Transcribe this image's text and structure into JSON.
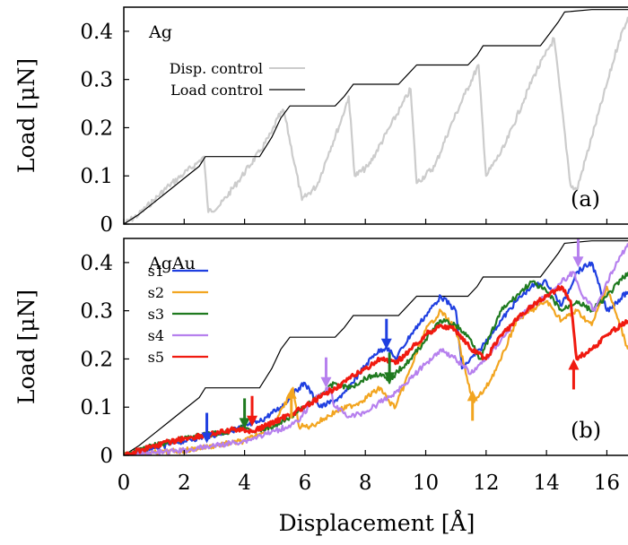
{
  "chart_data": [
    {
      "type": "line",
      "panel_tag": "Ag",
      "panel_letter": "(a)",
      "ylabel": "Load [μN]",
      "xlim": [
        0,
        16.7
      ],
      "ylim": [
        0,
        0.45
      ],
      "yticks": [
        0,
        0.1,
        0.2,
        0.3,
        0.4
      ],
      "ytick_labels": [
        "0",
        "0.1",
        "0.2",
        "0.3",
        "0.4"
      ],
      "legend_position": "top-left",
      "series": [
        {
          "name": "Disp. control",
          "color": "#cccccc",
          "noisy": true,
          "x": [
            0,
            0.5,
            1.0,
            1.5,
            2.0,
            2.4,
            2.65,
            2.8,
            3.2,
            3.8,
            4.5,
            4.9,
            5.1,
            5.3,
            5.9,
            6.4,
            6.8,
            7.2,
            7.45,
            7.65,
            8.1,
            8.8,
            9.2,
            9.5,
            9.7,
            10.3,
            10.8,
            11.3,
            11.75,
            12.0,
            12.6,
            13.2,
            13.6,
            13.95,
            14.25,
            14.8,
            15.0,
            15.5,
            16.0,
            16.4,
            16.7
          ],
          "y": [
            0,
            0.02,
            0.05,
            0.08,
            0.105,
            0.125,
            0.14,
            0.025,
            0.04,
            0.09,
            0.15,
            0.19,
            0.22,
            0.235,
            0.05,
            0.08,
            0.15,
            0.215,
            0.265,
            0.1,
            0.12,
            0.2,
            0.245,
            0.28,
            0.085,
            0.12,
            0.2,
            0.27,
            0.33,
            0.1,
            0.16,
            0.25,
            0.31,
            0.35,
            0.385,
            0.08,
            0.07,
            0.18,
            0.29,
            0.38,
            0.43
          ]
        },
        {
          "name": "Load control",
          "color": "#000000",
          "noisy": false,
          "x": [
            0,
            0.5,
            1.0,
            1.5,
            2.0,
            2.5,
            2.7,
            4.5,
            4.9,
            5.2,
            5.5,
            7.0,
            7.3,
            7.6,
            9.1,
            9.4,
            9.7,
            11.4,
            11.7,
            11.9,
            13.8,
            14.1,
            14.4,
            14.6,
            15.5,
            16.7
          ],
          "y": [
            0,
            0.02,
            0.045,
            0.07,
            0.095,
            0.12,
            0.14,
            0.14,
            0.18,
            0.22,
            0.245,
            0.245,
            0.265,
            0.29,
            0.29,
            0.31,
            0.33,
            0.33,
            0.35,
            0.37,
            0.37,
            0.395,
            0.42,
            0.44,
            0.445,
            0.445
          ]
        }
      ]
    },
    {
      "type": "line",
      "panel_tag": "AgAu",
      "panel_letter": "(b)",
      "xlabel": "Displacement [Å]",
      "ylabel": "Load [μN]",
      "xlim": [
        0,
        16.7
      ],
      "ylim": [
        0,
        0.45
      ],
      "xticks": [
        0,
        2,
        4,
        6,
        8,
        10,
        12,
        14,
        16
      ],
      "xtick_labels": [
        "0",
        "2",
        "4",
        "6",
        "8",
        "10",
        "12",
        "14",
        "16"
      ],
      "yticks": [
        0,
        0.1,
        0.2,
        0.3,
        0.4
      ],
      "ytick_labels": [
        "0",
        "0.1",
        "0.2",
        "0.3",
        "0.4"
      ],
      "legend_position": "left",
      "reference_line": {
        "color": "#000000",
        "x": [
          0,
          0.5,
          1.0,
          1.5,
          2.0,
          2.5,
          2.7,
          4.5,
          4.9,
          5.2,
          5.5,
          7.0,
          7.3,
          7.6,
          9.1,
          9.4,
          9.7,
          11.4,
          11.7,
          11.9,
          13.8,
          14.1,
          14.4,
          14.6,
          15.5,
          16.7
        ],
        "y": [
          0,
          0.02,
          0.045,
          0.07,
          0.095,
          0.12,
          0.14,
          0.14,
          0.18,
          0.22,
          0.245,
          0.245,
          0.265,
          0.29,
          0.29,
          0.31,
          0.33,
          0.33,
          0.35,
          0.37,
          0.37,
          0.395,
          0.42,
          0.44,
          0.445,
          0.445
        ]
      },
      "series": [
        {
          "name": "s1",
          "color": "#1f3fe0",
          "x": [
            0,
            1,
            2,
            2.8,
            3.5,
            4.5,
            5.2,
            5.8,
            6.0,
            6.5,
            7.2,
            7.8,
            8.3,
            8.7,
            9.0,
            9.5,
            10.0,
            10.5,
            11.0,
            11.2,
            11.8,
            12.5,
            13.0,
            13.5,
            14.0,
            14.5,
            15.0,
            15.5,
            16.0,
            16.7
          ],
          "y": [
            0,
            0.015,
            0.03,
            0.04,
            0.05,
            0.07,
            0.1,
            0.14,
            0.15,
            0.1,
            0.12,
            0.17,
            0.21,
            0.225,
            0.2,
            0.25,
            0.29,
            0.33,
            0.3,
            0.18,
            0.22,
            0.28,
            0.32,
            0.35,
            0.36,
            0.31,
            0.38,
            0.4,
            0.3,
            0.34
          ]
        },
        {
          "name": "s2",
          "color": "#f2a520",
          "x": [
            0,
            1,
            2,
            3,
            4,
            4.5,
            5.0,
            5.3,
            5.6,
            5.8,
            6.2,
            7.0,
            7.8,
            8.5,
            8.8,
            9.0,
            9.5,
            10.0,
            10.5,
            11.0,
            11.4,
            11.6,
            12.0,
            12.5,
            13.0,
            13.5,
            14.0,
            14.5,
            15.0,
            15.5,
            16.0,
            16.7
          ],
          "y": [
            0,
            0.005,
            0.01,
            0.02,
            0.03,
            0.045,
            0.07,
            0.1,
            0.14,
            0.06,
            0.06,
            0.09,
            0.11,
            0.14,
            0.11,
            0.1,
            0.18,
            0.26,
            0.3,
            0.26,
            0.15,
            0.11,
            0.14,
            0.2,
            0.28,
            0.3,
            0.32,
            0.28,
            0.3,
            0.27,
            0.35,
            0.22
          ]
        },
        {
          "name": "s3",
          "color": "#1f7a1f",
          "x": [
            0,
            1,
            2,
            3,
            3.5,
            4.0,
            4.3,
            5.0,
            6.0,
            7.0,
            7.5,
            8.0,
            8.5,
            8.8,
            9.0,
            9.5,
            10.0,
            10.5,
            11.0,
            11.5,
            11.8,
            12.5,
            13.0,
            13.5,
            14.0,
            14.5,
            15.0,
            15.5,
            16.0,
            16.7
          ],
          "y": [
            0,
            0.02,
            0.035,
            0.045,
            0.05,
            0.06,
            0.05,
            0.06,
            0.1,
            0.15,
            0.14,
            0.16,
            0.17,
            0.15,
            0.17,
            0.2,
            0.24,
            0.28,
            0.27,
            0.24,
            0.2,
            0.3,
            0.33,
            0.36,
            0.34,
            0.3,
            0.32,
            0.3,
            0.33,
            0.38
          ]
        },
        {
          "name": "s4",
          "color": "#b680ee",
          "x": [
            0,
            1,
            2,
            3,
            4,
            5,
            5.8,
            6.2,
            6.6,
            6.8,
            7.0,
            7.5,
            8.0,
            8.5,
            9.0,
            9.5,
            10.0,
            10.5,
            11.0,
            11.5,
            12.0,
            12.5,
            13.0,
            13.5,
            14.0,
            14.5,
            14.9,
            15.2,
            15.6,
            16.0,
            16.7
          ],
          "y": [
            0,
            0.005,
            0.01,
            0.02,
            0.03,
            0.05,
            0.07,
            0.11,
            0.13,
            0.14,
            0.1,
            0.08,
            0.09,
            0.11,
            0.13,
            0.16,
            0.19,
            0.22,
            0.2,
            0.17,
            0.2,
            0.24,
            0.28,
            0.31,
            0.33,
            0.36,
            0.38,
            0.33,
            0.3,
            0.36,
            0.44
          ]
        },
        {
          "name": "s5",
          "color": "#f01a10",
          "x": [
            0,
            1,
            2,
            3,
            3.8,
            4.3,
            5.0,
            6.0,
            6.5,
            7.0,
            7.5,
            8.0,
            8.5,
            9.0,
            9.5,
            10.0,
            10.5,
            11.0,
            11.5,
            12.0,
            12.5,
            13.0,
            13.5,
            14.0,
            14.5,
            14.8,
            15.0,
            15.5,
            16.0,
            16.7
          ],
          "y": [
            0,
            0.02,
            0.035,
            0.045,
            0.055,
            0.05,
            0.07,
            0.1,
            0.12,
            0.14,
            0.16,
            0.18,
            0.2,
            0.19,
            0.22,
            0.25,
            0.27,
            0.26,
            0.22,
            0.2,
            0.25,
            0.28,
            0.31,
            0.33,
            0.35,
            0.32,
            0.2,
            0.22,
            0.25,
            0.28
          ]
        }
      ],
      "arrows": [
        {
          "x": 2.75,
          "y": 0.025,
          "dir": "down",
          "color": "#1f3fe0"
        },
        {
          "x": 4.0,
          "y": 0.055,
          "dir": "down",
          "color": "#1f7a1f"
        },
        {
          "x": 4.25,
          "y": 0.06,
          "dir": "down",
          "color": "#f01a10"
        },
        {
          "x": 5.55,
          "y": 0.14,
          "dir": "up",
          "color": "#f2a520"
        },
        {
          "x": 6.7,
          "y": 0.14,
          "dir": "down",
          "color": "#b680ee"
        },
        {
          "x": 8.7,
          "y": 0.22,
          "dir": "down",
          "color": "#1f3fe0"
        },
        {
          "x": 8.8,
          "y": 0.15,
          "dir": "down",
          "color": "#1f7a1f"
        },
        {
          "x": 11.55,
          "y": 0.135,
          "dir": "up",
          "color": "#f2a520"
        },
        {
          "x": 14.9,
          "y": 0.2,
          "dir": "up",
          "color": "#f01a10"
        },
        {
          "x": 15.05,
          "y": 0.39,
          "dir": "down",
          "color": "#b680ee"
        }
      ]
    }
  ]
}
